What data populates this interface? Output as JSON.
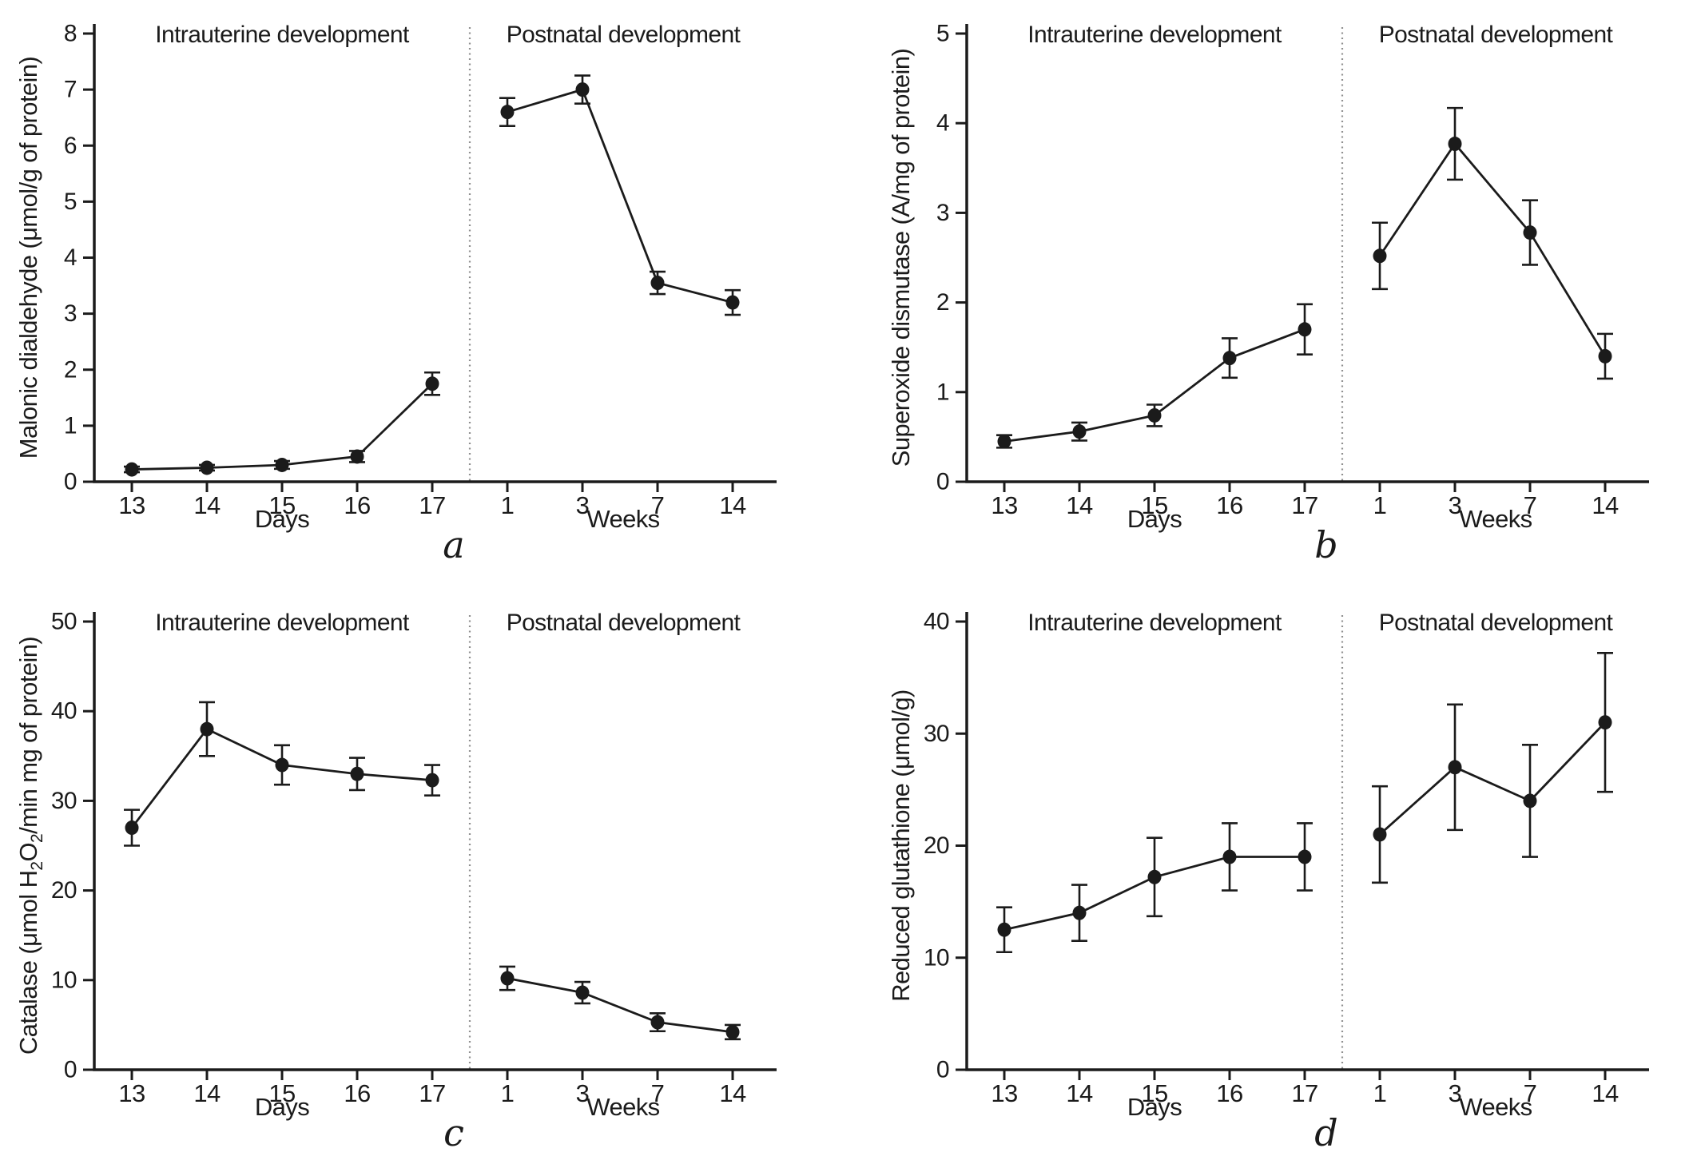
{
  "figure": {
    "background_color": "#ffffff",
    "ink_color": "#1b1b1b",
    "divider_color": "#8f8f8f",
    "section_headers": [
      "Intrauterine development",
      "Postnatal development"
    ],
    "x_unit_labels": [
      "Days",
      "Weeks"
    ]
  },
  "chart_data": [
    {
      "type": "line",
      "panel_letter": "a",
      "ylabel": "Malonic dialdehyde (μmol/g of protein)",
      "ylabel_parts": [
        {
          "t": "Malonic dialdehyde (μmol/g of protein)"
        }
      ],
      "ylim": [
        0,
        8
      ],
      "yticks": [
        0,
        1,
        2,
        3,
        4,
        5,
        6,
        7,
        8
      ],
      "grid": false,
      "legend": "none",
      "marker": "filled-circle",
      "sections": [
        {
          "title": "Intrauterine development",
          "x_label": "Days",
          "categories": [
            "13",
            "14",
            "15",
            "16",
            "17"
          ],
          "values": [
            0.22,
            0.25,
            0.3,
            0.45,
            1.75
          ],
          "errors": [
            0.05,
            0.05,
            0.07,
            0.1,
            0.2
          ]
        },
        {
          "title": "Postnatal development",
          "x_label": "Weeks",
          "categories": [
            "1",
            "3",
            "7",
            "14"
          ],
          "values": [
            6.6,
            7.0,
            3.55,
            3.2
          ],
          "errors": [
            0.25,
            0.25,
            0.2,
            0.22
          ]
        }
      ]
    },
    {
      "type": "line",
      "panel_letter": "b",
      "ylabel": "Superoxide dismutase (A/mg of protein)",
      "ylabel_parts": [
        {
          "t": "Superoxide dismutase (A/mg of protein)"
        }
      ],
      "ylim": [
        0,
        5
      ],
      "yticks": [
        0,
        1,
        2,
        3,
        4,
        5
      ],
      "grid": false,
      "legend": "none",
      "marker": "filled-circle",
      "sections": [
        {
          "title": "Intrauterine development",
          "x_label": "Days",
          "categories": [
            "13",
            "14",
            "15",
            "16",
            "17"
          ],
          "values": [
            0.45,
            0.56,
            0.74,
            1.38,
            1.7
          ],
          "errors": [
            0.07,
            0.1,
            0.12,
            0.22,
            0.28
          ]
        },
        {
          "title": "Postnatal development",
          "x_label": "Weeks",
          "categories": [
            "1",
            "3",
            "7",
            "14"
          ],
          "values": [
            2.52,
            3.77,
            2.78,
            1.4
          ],
          "errors": [
            0.37,
            0.4,
            0.36,
            0.25
          ]
        }
      ]
    },
    {
      "type": "line",
      "panel_letter": "c",
      "ylabel": "Catalase (μmol H2O2/min mg of protein)",
      "ylabel_parts": [
        {
          "t": "Catalase (μmol H"
        },
        {
          "t": "2",
          "sub": true
        },
        {
          "t": "O"
        },
        {
          "t": "2",
          "sub": true
        },
        {
          "t": "/min mg of protein)"
        }
      ],
      "ylim": [
        0,
        50
      ],
      "yticks": [
        0,
        10,
        20,
        30,
        40,
        50
      ],
      "grid": false,
      "legend": "none",
      "marker": "filled-circle",
      "sections": [
        {
          "title": "Intrauterine development",
          "x_label": "Days",
          "categories": [
            "13",
            "14",
            "15",
            "16",
            "17"
          ],
          "values": [
            27,
            38,
            34,
            33,
            32.3
          ],
          "errors": [
            2,
            3,
            2.2,
            1.8,
            1.7
          ]
        },
        {
          "title": "Postnatal development",
          "x_label": "Weeks",
          "categories": [
            "1",
            "3",
            "7",
            "14"
          ],
          "values": [
            10.2,
            8.6,
            5.3,
            4.2
          ],
          "errors": [
            1.3,
            1.2,
            1.0,
            0.8
          ]
        }
      ]
    },
    {
      "type": "line",
      "panel_letter": "d",
      "ylabel": "Reduced glutathione (μmol/g)",
      "ylabel_parts": [
        {
          "t": "Reduced glutathione (μmol/g)"
        }
      ],
      "ylim": [
        0,
        40
      ],
      "yticks": [
        0,
        10,
        20,
        30,
        40
      ],
      "grid": false,
      "legend": "none",
      "marker": "filled-circle",
      "sections": [
        {
          "title": "Intrauterine development",
          "x_label": "Days",
          "categories": [
            "13",
            "14",
            "15",
            "16",
            "17"
          ],
          "values": [
            12.5,
            14,
            17.2,
            19,
            19
          ],
          "errors": [
            2,
            2.5,
            3.5,
            3,
            3
          ]
        },
        {
          "title": "Postnatal development",
          "x_label": "Weeks",
          "categories": [
            "1",
            "3",
            "7",
            "14"
          ],
          "values": [
            21,
            27,
            24,
            31
          ],
          "errors": [
            4.3,
            5.6,
            5.0,
            6.2
          ]
        }
      ]
    }
  ]
}
